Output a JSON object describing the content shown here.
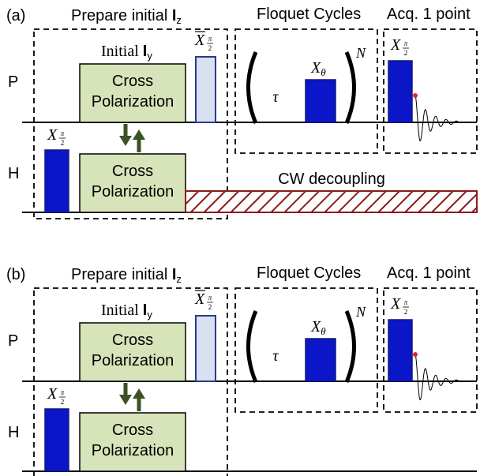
{
  "colors": {
    "pulse_blue": "#0b16c8",
    "pulse_outline": "#101a7a",
    "light_pulse": "#d9e0f2",
    "light_pulse_outline": "#2a3a8c",
    "cp_fill": "#d7e4b9",
    "arrow": "#3b5323",
    "decoupling": "#8b1a1a",
    "fid_dot": "#e0242e",
    "line": "#000000"
  },
  "panels": [
    {
      "id": "a",
      "panel_label": "(a)",
      "section_prepare": "Prepare initial ",
      "section_prepare_symbol": "I",
      "section_prepare_subscript": "z",
      "section_floquet": "Floquet Cycles",
      "section_acq": "Acq. 1 point",
      "channel_p": "P",
      "channel_h": "H",
      "initial_label": "Initial ",
      "initial_symbol": "I",
      "initial_subscript": "y",
      "cp_top_line1": "Cross",
      "cp_top_line2": "Polarization",
      "cp_bottom_line1": "Cross",
      "cp_bottom_line2": "Polarization",
      "h_pulse_label": "X",
      "h_pulse_fraction": "π/2",
      "bar_pulse_label": "X",
      "bar_pulse_fraction": "π/2",
      "tau": "τ",
      "floquet_pulse_label": "X",
      "floquet_pulse_subscript": "θ",
      "repeat_n": "N",
      "acq_pulse_label": "X",
      "acq_pulse_fraction": "π/2",
      "cw_label": "CW decoupling",
      "has_cw": true
    },
    {
      "id": "b",
      "panel_label": "(b)",
      "section_prepare": "Prepare initial ",
      "section_prepare_symbol": "I",
      "section_prepare_subscript": "z",
      "section_floquet": "Floquet Cycles",
      "section_acq": "Acq. 1 point",
      "channel_p": "P",
      "channel_h": "H",
      "initial_label": "Initial ",
      "initial_symbol": "I",
      "initial_subscript": "y",
      "cp_top_line1": "Cross",
      "cp_top_line2": "Polarization",
      "cp_bottom_line1": "Cross",
      "cp_bottom_line2": "Polarization",
      "h_pulse_label": "X",
      "h_pulse_fraction": "π/2",
      "bar_pulse_label": "X",
      "bar_pulse_fraction": "π/2",
      "tau": "τ",
      "floquet_pulse_label": "X",
      "floquet_pulse_subscript": "θ",
      "repeat_n": "N",
      "acq_pulse_label": "X",
      "acq_pulse_fraction": "π/2",
      "cw_label": "",
      "has_cw": false
    }
  ]
}
